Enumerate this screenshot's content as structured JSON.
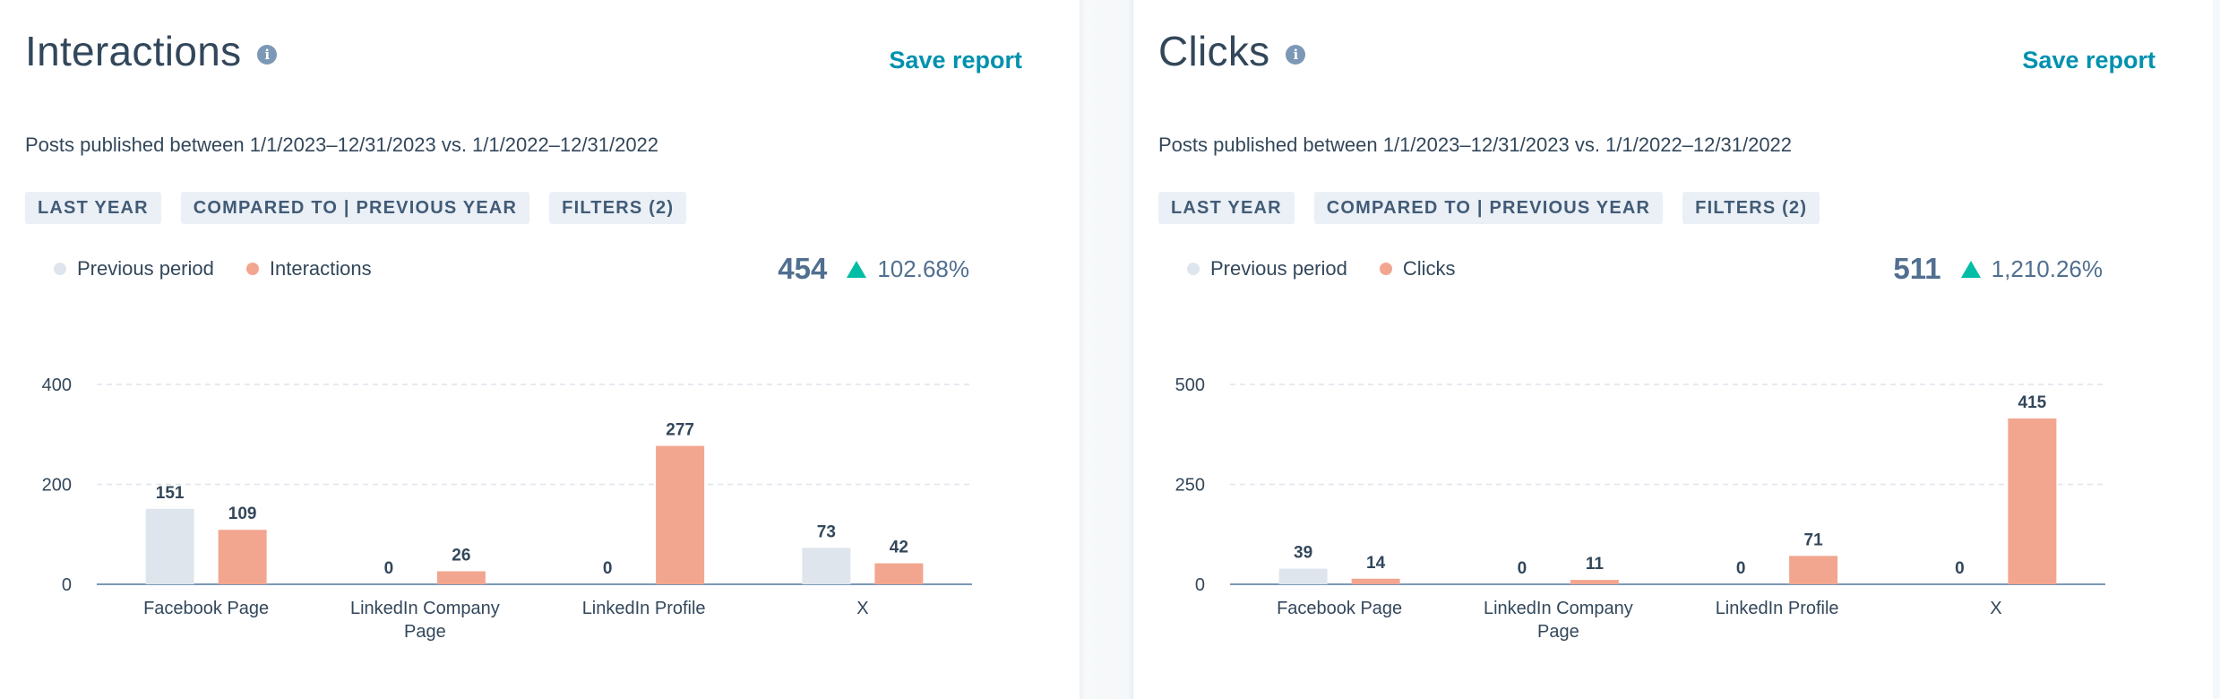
{
  "panels": [
    {
      "title": "Interactions",
      "info_icon": "info-icon",
      "save_label": "Save report",
      "subtitle": "Posts published between 1/1/2023–12/31/2023 vs. 1/1/2022–12/31/2022",
      "chips": [
        "LAST YEAR",
        "COMPARED TO | PREVIOUS YEAR",
        "FILTERS (2)"
      ],
      "legend": [
        {
          "label": "Previous period",
          "color": "#dfe5ec"
        },
        {
          "label": "Interactions",
          "color": "#f2a68f"
        }
      ],
      "kpi": {
        "total": "454",
        "change": "102.68%",
        "trend_icon": "up-triangle-icon",
        "trend_color": "#00bda5"
      }
    },
    {
      "title": "Clicks",
      "info_icon": "info-icon",
      "save_label": "Save report",
      "subtitle": "Posts published between 1/1/2023–12/31/2023 vs. 1/1/2022–12/31/2022",
      "chips": [
        "LAST YEAR",
        "COMPARED TO | PREVIOUS YEAR",
        "FILTERS (2)"
      ],
      "legend": [
        {
          "label": "Previous period",
          "color": "#dfe5ec"
        },
        {
          "label": "Clicks",
          "color": "#f2a68f"
        }
      ],
      "kpi": {
        "total": "511",
        "change": "1,210.26%",
        "trend_icon": "up-triangle-icon",
        "trend_color": "#00bda5"
      }
    }
  ],
  "chart_data": [
    {
      "type": "bar",
      "categories": [
        [
          "Facebook Page"
        ],
        [
          "LinkedIn Company",
          "Page"
        ],
        [
          "LinkedIn Profile"
        ],
        [
          "X"
        ]
      ],
      "series": [
        {
          "name": "Previous period",
          "color": "#dfe5ec",
          "values": [
            151,
            0,
            0,
            73
          ]
        },
        {
          "name": "Interactions",
          "color": "#f2a68f",
          "values": [
            109,
            26,
            277,
            42
          ]
        }
      ],
      "yticks": [
        0,
        200,
        400
      ],
      "ylim": [
        0,
        400
      ],
      "grid": true
    },
    {
      "type": "bar",
      "categories": [
        [
          "Facebook Page"
        ],
        [
          "LinkedIn Company",
          "Page"
        ],
        [
          "LinkedIn Profile"
        ],
        [
          "X"
        ]
      ],
      "series": [
        {
          "name": "Previous period",
          "color": "#dfe5ec",
          "values": [
            39,
            0,
            0,
            0
          ]
        },
        {
          "name": "Clicks",
          "color": "#f2a68f",
          "values": [
            14,
            11,
            71,
            415
          ]
        }
      ],
      "yticks": [
        0,
        250,
        500
      ],
      "ylim": [
        0,
        500
      ],
      "grid": true
    }
  ]
}
